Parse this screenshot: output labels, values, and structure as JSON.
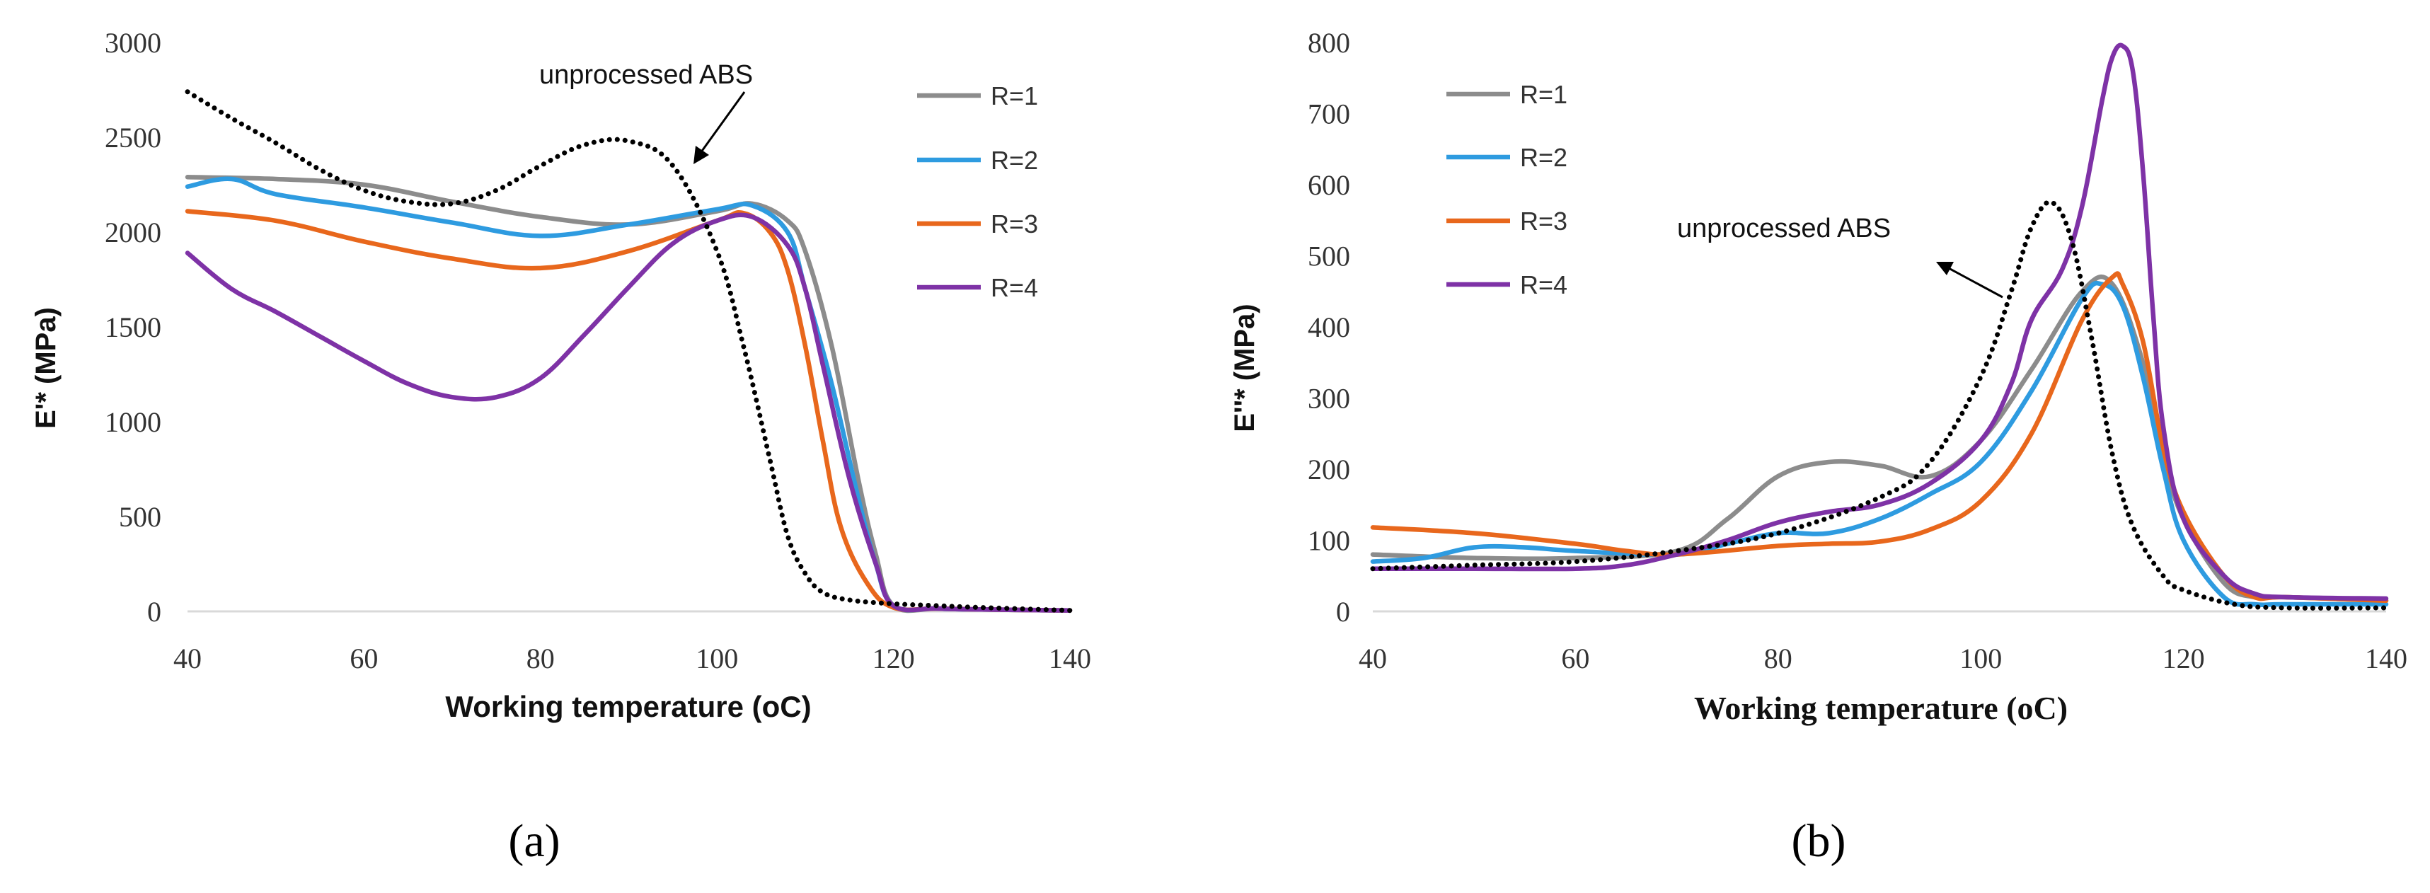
{
  "chart_data": [
    {
      "id": "a",
      "type": "line",
      "panel_label": "(a)",
      "ylabel": "E'* (MPa)",
      "xlabel": "Working temperature (oC)",
      "xlim": [
        40,
        140
      ],
      "ylim": [
        0,
        3000
      ],
      "xticks": [
        40,
        60,
        80,
        100,
        120,
        140
      ],
      "yticks": [
        0,
        500,
        1000,
        1500,
        2000,
        2500,
        3000
      ],
      "legend_position": "top-right",
      "annotation": "unprocessed ABS",
      "series": [
        {
          "name": "R=1",
          "color": "#8c8c8c",
          "style": "solid",
          "x": [
            40,
            50,
            60,
            70,
            80,
            90,
            100,
            104,
            108,
            110,
            113,
            116,
            118,
            120,
            125,
            130,
            140
          ],
          "y": [
            2290,
            2280,
            2250,
            2160,
            2080,
            2040,
            2110,
            2150,
            2060,
            1900,
            1400,
            700,
            300,
            30,
            15,
            10,
            5
          ]
        },
        {
          "name": "R=2",
          "color": "#2e9be0",
          "style": "solid",
          "x": [
            40,
            45,
            50,
            60,
            70,
            80,
            90,
            100,
            104,
            108,
            110,
            113,
            116,
            118,
            120,
            125,
            130,
            140
          ],
          "y": [
            2240,
            2280,
            2200,
            2130,
            2050,
            1980,
            2040,
            2120,
            2140,
            2000,
            1700,
            1200,
            600,
            250,
            30,
            15,
            10,
            5
          ]
        },
        {
          "name": "R=3",
          "color": "#e8671c",
          "style": "solid",
          "x": [
            40,
            50,
            60,
            70,
            80,
            90,
            100,
            103,
            106,
            108,
            110,
            112,
            114,
            117,
            120,
            125,
            130,
            140
          ],
          "y": [
            2110,
            2060,
            1950,
            1860,
            1810,
            1900,
            2060,
            2100,
            2000,
            1800,
            1400,
            900,
            450,
            150,
            20,
            15,
            10,
            5
          ]
        },
        {
          "name": "R=4",
          "color": "#7e32a6",
          "style": "solid",
          "x": [
            40,
            45,
            50,
            55,
            60,
            65,
            70,
            75,
            80,
            85,
            90,
            95,
            100,
            104,
            108,
            110,
            112,
            115,
            118,
            120,
            125,
            130,
            140
          ],
          "y": [
            1890,
            1700,
            1580,
            1450,
            1320,
            1200,
            1130,
            1130,
            1230,
            1460,
            1710,
            1940,
            2060,
            2080,
            1930,
            1700,
            1300,
            700,
            250,
            30,
            15,
            10,
            5
          ]
        },
        {
          "name": "unprocessed ABS",
          "color": "#000000",
          "style": "dotted",
          "x": [
            40,
            45,
            50,
            55,
            60,
            65,
            70,
            75,
            80,
            85,
            90,
            95,
            100,
            103,
            106,
            108,
            110,
            112,
            115,
            120,
            125,
            130,
            140
          ],
          "y": [
            2740,
            2600,
            2470,
            2330,
            2220,
            2160,
            2150,
            2220,
            2350,
            2460,
            2480,
            2350,
            1900,
            1400,
            800,
            400,
            200,
            100,
            60,
            40,
            30,
            20,
            5
          ]
        }
      ]
    },
    {
      "id": "b",
      "type": "line",
      "panel_label": "(b)",
      "ylabel": "E''* (MPa)",
      "xlabel": "Working temperature (oC)",
      "xlim": [
        40,
        140
      ],
      "ylim": [
        0,
        800
      ],
      "xticks": [
        40,
        60,
        80,
        100,
        120,
        140
      ],
      "yticks": [
        0,
        100,
        200,
        300,
        400,
        500,
        600,
        700,
        800
      ],
      "legend_position": "top-left",
      "annotation": "unprocessed ABS",
      "series": [
        {
          "name": "R=1",
          "color": "#8c8c8c",
          "style": "solid",
          "x": [
            40,
            50,
            60,
            70,
            75,
            80,
            85,
            90,
            95,
            100,
            105,
            110,
            113,
            116,
            118,
            120,
            124,
            127,
            130,
            140
          ],
          "y": [
            80,
            75,
            75,
            85,
            130,
            190,
            210,
            205,
            190,
            240,
            340,
            450,
            460,
            350,
            220,
            130,
            40,
            20,
            20,
            15
          ]
        },
        {
          "name": "R=2",
          "color": "#2e9be0",
          "style": "solid",
          "x": [
            40,
            45,
            50,
            55,
            60,
            70,
            75,
            80,
            85,
            90,
            95,
            100,
            105,
            110,
            112,
            114,
            116,
            118,
            120,
            124,
            127,
            130,
            140
          ],
          "y": [
            70,
            75,
            90,
            90,
            85,
            80,
            95,
            110,
            110,
            130,
            165,
            210,
            310,
            440,
            460,
            430,
            330,
            200,
            100,
            20,
            10,
            10,
            10
          ]
        },
        {
          "name": "R=3",
          "color": "#e8671c",
          "style": "solid",
          "x": [
            40,
            50,
            60,
            65,
            70,
            80,
            85,
            90,
            95,
            100,
            105,
            110,
            113,
            114,
            116,
            118,
            120,
            124,
            127,
            130,
            140
          ],
          "y": [
            118,
            110,
            95,
            85,
            80,
            92,
            95,
            98,
            115,
            155,
            250,
            410,
            470,
            460,
            380,
            230,
            140,
            50,
            20,
            20,
            15
          ]
        },
        {
          "name": "R=4",
          "color": "#7e32a6",
          "style": "solid",
          "x": [
            40,
            50,
            60,
            65,
            70,
            75,
            80,
            85,
            90,
            95,
            100,
            103,
            105,
            108,
            110,
            112,
            113,
            114,
            115,
            116,
            117,
            118,
            120,
            124,
            127,
            130,
            140
          ],
          "y": [
            60,
            60,
            60,
            65,
            80,
            100,
            125,
            140,
            150,
            180,
            240,
            320,
            410,
            480,
            570,
            720,
            780,
            795,
            760,
            620,
            420,
            260,
            130,
            50,
            25,
            20,
            18
          ]
        },
        {
          "name": "unprocessed ABS",
          "color": "#000000",
          "style": "dotted",
          "x": [
            40,
            50,
            60,
            70,
            80,
            90,
            95,
            100,
            103,
            105,
            107,
            109,
            111,
            113,
            115,
            118,
            120,
            125,
            130,
            140
          ],
          "y": [
            60,
            65,
            70,
            85,
            110,
            160,
            210,
            330,
            450,
            540,
            575,
            520,
            380,
            220,
            120,
            50,
            30,
            10,
            5,
            5
          ]
        }
      ]
    }
  ]
}
